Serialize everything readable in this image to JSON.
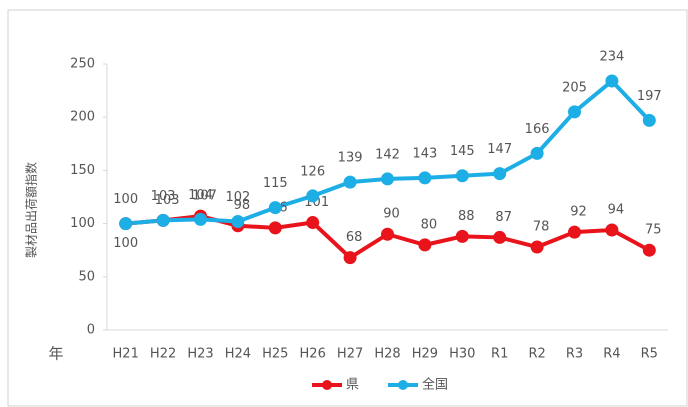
{
  "chart_data": {
    "type": "line",
    "y_label": "製材品出荷額指数",
    "x_label": "年",
    "categories": [
      "H21",
      "H22",
      "H23",
      "H24",
      "H25",
      "H26",
      "H27",
      "H28",
      "H29",
      "H30",
      "R1",
      "R2",
      "R3",
      "R4",
      "R5"
    ],
    "series": [
      {
        "name": "県",
        "color": "#e8131b",
        "values": [
          100,
          103,
          107,
          98,
          96,
          101,
          68,
          90,
          80,
          88,
          87,
          78,
          92,
          94,
          75
        ]
      },
      {
        "name": "全国",
        "color": "#1eaee6",
        "values": [
          100,
          103,
          104,
          102,
          115,
          126,
          139,
          142,
          143,
          145,
          147,
          166,
          205,
          234,
          197
        ]
      }
    ],
    "ylim": [
      0,
      250
    ],
    "yticks": [
      0,
      50,
      100,
      150,
      200,
      250
    ],
    "grid": false,
    "legend": "bottom"
  }
}
